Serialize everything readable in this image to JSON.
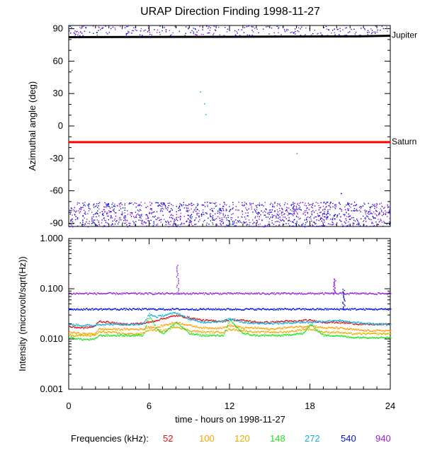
{
  "figure": {
    "title": "URAP Direction Finding  1998-11-27",
    "xlabel": "time - hours on 1998-11-27"
  },
  "legend": {
    "label": "Frequencies (kHz):",
    "entries": [
      {
        "name": "52",
        "color": "#e01010"
      },
      {
        "name": "100",
        "color": "#ffa000"
      },
      {
        "name": "120",
        "color": "#e0b000"
      },
      {
        "name": "148",
        "color": "#20e020"
      },
      {
        "name": "272",
        "color": "#10b0e0"
      },
      {
        "name": "540",
        "color": "#0010e0"
      },
      {
        "name": "940",
        "color": "#9020e0"
      }
    ]
  },
  "chart_data": [
    {
      "type": "scatter",
      "name": "azimuth",
      "ylabel": "Azimuthal angle (deg)",
      "xlim": [
        0,
        24
      ],
      "ylim": [
        -93,
        93
      ],
      "xticks": [
        0,
        6,
        12,
        18,
        24
      ],
      "yticks": [
        90,
        60,
        30,
        0,
        -30,
        -60,
        -90
      ],
      "reference_lines": [
        {
          "label": "Jupiter",
          "color": "#000000",
          "y": [
            82.2,
            82.4,
            82.4,
            82.5,
            83.0,
            83.5
          ]
        },
        {
          "label": "Saturn",
          "color": "#ff0000",
          "y": -15
        }
      ],
      "ref_x": [
        0,
        4.5,
        4.6,
        12,
        22,
        24
      ],
      "scatter_bands": [
        {
          "y_range": [
            -93,
            -70
          ],
          "colors": [
            "#0010e0",
            "#9020e0"
          ]
        },
        {
          "y_range": [
            84,
            93
          ],
          "colors": [
            "#0010e0",
            "#9020e0"
          ]
        }
      ],
      "isolated_points": [
        {
          "x": 0.2,
          "y": 52,
          "color": "#9020e0"
        },
        {
          "x": 0.3,
          "y": -32,
          "color": "#10b0e0"
        },
        {
          "x": 9.8,
          "y": 32,
          "color": "#10b0e0"
        },
        {
          "x": 10.1,
          "y": 21,
          "color": "#10b0e0"
        },
        {
          "x": 10.2,
          "y": 11,
          "color": "#10b0e0"
        },
        {
          "x": 17.0,
          "y": -25,
          "color": "#10b0e0"
        },
        {
          "x": 20.3,
          "y": -62,
          "color": "#0010e0"
        }
      ]
    },
    {
      "type": "line",
      "name": "intensity",
      "ylabel": "Intensity (microvolt/sqrt(Hz))",
      "yscale": "log",
      "xlim": [
        0,
        24
      ],
      "ylim": [
        0.001,
        1.0
      ],
      "xticks": [
        0,
        6,
        12,
        18,
        24
      ],
      "yticks": [
        1.0,
        0.1,
        0.01,
        0.001
      ],
      "ytick_labels": [
        "1.000",
        "0.100",
        "0.010",
        "0.001"
      ],
      "x": [
        0,
        1,
        1.9,
        2.2,
        3,
        4,
        5.5,
        6,
        6.5,
        7,
        8,
        9,
        10,
        11.5,
        12,
        13,
        14,
        15,
        16,
        17,
        17.5,
        18,
        19,
        20,
        21,
        22,
        23,
        24
      ],
      "series": [
        {
          "name": "52",
          "color": "#e01010",
          "values": [
            0.018,
            0.017,
            0.018,
            0.023,
            0.022,
            0.02,
            0.021,
            0.022,
            0.024,
            0.026,
            0.03,
            0.027,
            0.024,
            0.023,
            0.025,
            0.024,
            0.022,
            0.022,
            0.023,
            0.023,
            0.024,
            0.024,
            0.022,
            0.022,
            0.021,
            0.02,
            0.02,
            0.02
          ]
        },
        {
          "name": "100",
          "color": "#ffa000",
          "values": [
            0.014,
            0.013,
            0.013,
            0.016,
            0.016,
            0.016,
            0.016,
            0.018,
            0.017,
            0.019,
            0.022,
            0.019,
            0.017,
            0.017,
            0.019,
            0.017,
            0.017,
            0.016,
            0.017,
            0.018,
            0.018,
            0.019,
            0.017,
            0.017,
            0.016,
            0.015,
            0.015,
            0.015
          ]
        },
        {
          "name": "120",
          "color": "#e0b000",
          "values": [
            0.012,
            0.012,
            0.012,
            0.014,
            0.014,
            0.013,
            0.013,
            0.016,
            0.015,
            0.015,
            0.018,
            0.015,
            0.014,
            0.014,
            0.016,
            0.015,
            0.014,
            0.014,
            0.014,
            0.015,
            0.016,
            0.016,
            0.014,
            0.014,
            0.013,
            0.013,
            0.013,
            0.013
          ]
        },
        {
          "name": "148",
          "color": "#20e020",
          "values": [
            0.011,
            0.01,
            0.01,
            0.012,
            0.012,
            0.012,
            0.012,
            0.03,
            0.017,
            0.013,
            0.022,
            0.013,
            0.012,
            0.012,
            0.024,
            0.013,
            0.012,
            0.012,
            0.012,
            0.013,
            0.013,
            0.02,
            0.012,
            0.012,
            0.011,
            0.011,
            0.011,
            0.011
          ]
        },
        {
          "name": "272",
          "color": "#10b0e0",
          "values": [
            0.02,
            0.019,
            0.019,
            0.02,
            0.02,
            0.02,
            0.02,
            0.032,
            0.028,
            0.03,
            0.034,
            0.025,
            0.022,
            0.023,
            0.026,
            0.022,
            0.021,
            0.021,
            0.021,
            0.022,
            0.022,
            0.022,
            0.023,
            0.024,
            0.022,
            0.021,
            0.02,
            0.02
          ]
        },
        {
          "name": "540",
          "color": "#0010e0",
          "values": [
            0.04,
            0.04,
            0.04,
            0.04,
            0.04,
            0.04,
            0.04,
            0.04,
            0.04,
            0.04,
            0.04,
            0.04,
            0.04,
            0.04,
            0.04,
            0.04,
            0.04,
            0.04,
            0.04,
            0.04,
            0.04,
            0.04,
            0.04,
            0.04,
            0.04,
            0.04,
            0.04,
            0.04
          ]
        },
        {
          "name": "940",
          "color": "#9020e0",
          "values": [
            0.082,
            0.082,
            0.082,
            0.082,
            0.082,
            0.082,
            0.082,
            0.082,
            0.082,
            0.082,
            0.082,
            0.082,
            0.082,
            0.082,
            0.082,
            0.082,
            0.082,
            0.082,
            0.082,
            0.082,
            0.082,
            0.082,
            0.082,
            0.082,
            0.082,
            0.082,
            0.082,
            0.082
          ]
        }
      ],
      "spikes": [
        {
          "x": 8.1,
          "color": "#9020e0",
          "peak": 0.3
        },
        {
          "x": 19.8,
          "color": "#9020e0",
          "peak": 0.16
        },
        {
          "x": 20.5,
          "color": "#0010e0",
          "peak": 0.1
        }
      ]
    }
  ]
}
